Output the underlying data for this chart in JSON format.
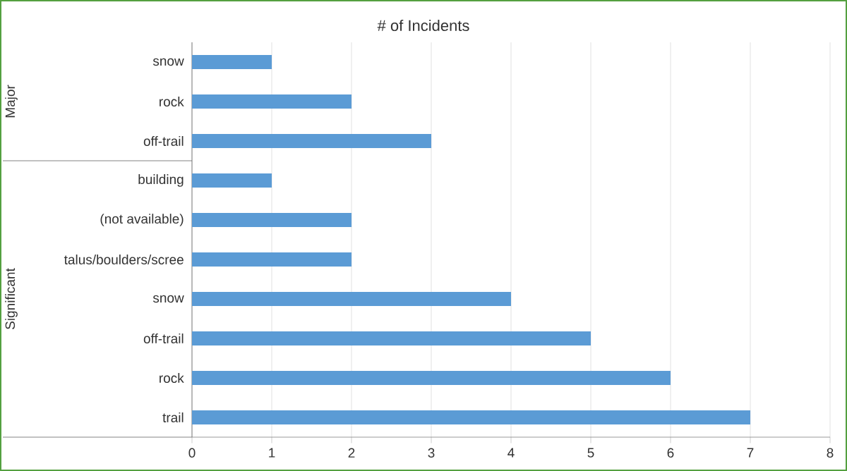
{
  "chart_data": {
    "type": "bar",
    "orientation": "horizontal",
    "title": "# of Incidents",
    "categories": [
      "snow",
      "rock",
      "off-trail",
      "building",
      "(not available)",
      "talus/boulders/scree",
      "snow",
      "off-trail",
      "rock",
      "trail"
    ],
    "values": [
      1,
      2,
      3,
      1,
      2,
      2,
      4,
      5,
      6,
      7
    ],
    "color": "#5b9bd5",
    "xlim": [
      0,
      8
    ],
    "xticks": [
      0,
      1,
      2,
      3,
      4,
      5,
      6,
      7,
      8
    ],
    "grid": "x",
    "annotations": [
      "Major",
      "Significant"
    ]
  }
}
